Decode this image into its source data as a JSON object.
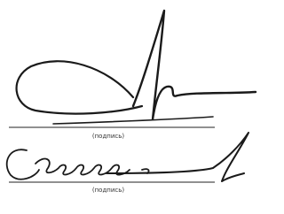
{
  "signatures": [
    {
      "caption": "(подпись)"
    },
    {
      "caption": "(подпись)"
    }
  ]
}
